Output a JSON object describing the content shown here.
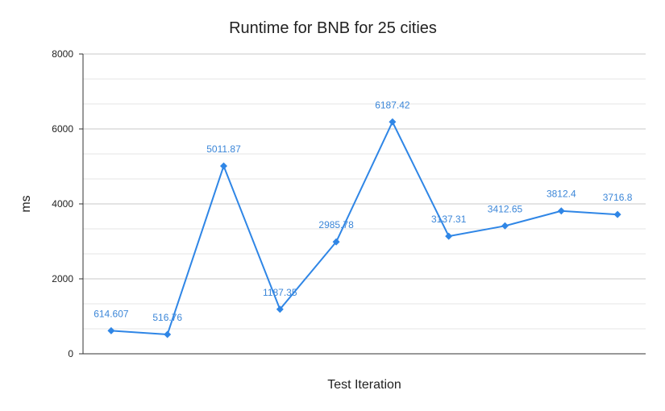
{
  "chart_data": {
    "type": "line",
    "title": "Runtime for BNB for 25 cities",
    "xlabel": "Test Iteration",
    "ylabel": "ms",
    "ylim": [
      0,
      8000
    ],
    "yticks": [
      0,
      2000,
      4000,
      6000,
      8000
    ],
    "y_tick_labels": [
      "0",
      "2000",
      "4000",
      "6000",
      "8000"
    ],
    "minor_gridlines": true,
    "legend": "none",
    "series": [
      {
        "values": [
          614.607,
          516.76,
          5011.87,
          1187.35,
          2985.78,
          6187.42,
          3137.31,
          3412.65,
          3812.4,
          3716.8
        ],
        "labels": [
          "614.607",
          "516.76",
          "5011.87",
          "1187.35",
          "2985.78",
          "6187.42",
          "3137.31",
          "3412.65",
          "3812.4",
          "3716.8"
        ],
        "color": "#2f86e6",
        "marker": "diamond"
      }
    ],
    "colors": {
      "line": "#2f86e6",
      "data_label": "#3b86d8",
      "major_grid": "#c8c8c8",
      "minor_grid": "#e6e6e6",
      "axis": "#333333"
    }
  }
}
